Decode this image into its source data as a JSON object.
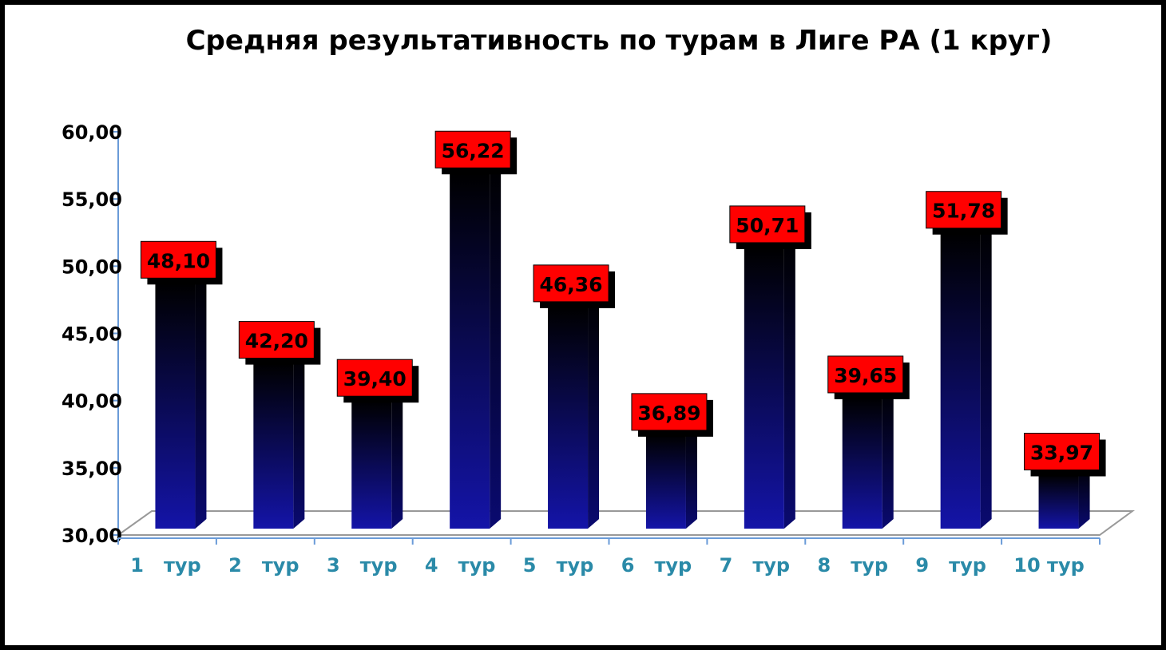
{
  "chart_data": {
    "type": "bar",
    "title": "Средняя результативность по турам в Лиге РА (1 круг)",
    "categories": [
      "1   тур",
      "2   тур",
      "3   тур",
      "4   тур",
      "5   тур",
      "6   тур",
      "7   тур",
      "8   тур",
      "9   тур",
      "10 тур"
    ],
    "values": [
      48.1,
      42.2,
      39.4,
      56.22,
      46.36,
      36.89,
      50.71,
      39.65,
      51.78,
      33.97
    ],
    "data_labels": [
      "48,10",
      "42,20",
      "39,40",
      "56,22",
      "46,36",
      "36,89",
      "50,71",
      "39,65",
      "51,78",
      "33,97"
    ],
    "ylim": [
      30,
      60
    ],
    "yticks": [
      "30,00",
      "35,00",
      "40,00",
      "45,00",
      "50,00",
      "55,00",
      "60,00"
    ],
    "xlabel": "",
    "ylabel": "",
    "grid": false,
    "legend": "none",
    "style": "3d-column",
    "colors": {
      "bar_top": "#000000",
      "bar_bottom": "#1010a0",
      "label_bg": "#ff0000",
      "label_text": "#000000",
      "axis": "#6a9bd8",
      "tick_label": "#000000",
      "category_label": "#2a8aa8"
    }
  }
}
